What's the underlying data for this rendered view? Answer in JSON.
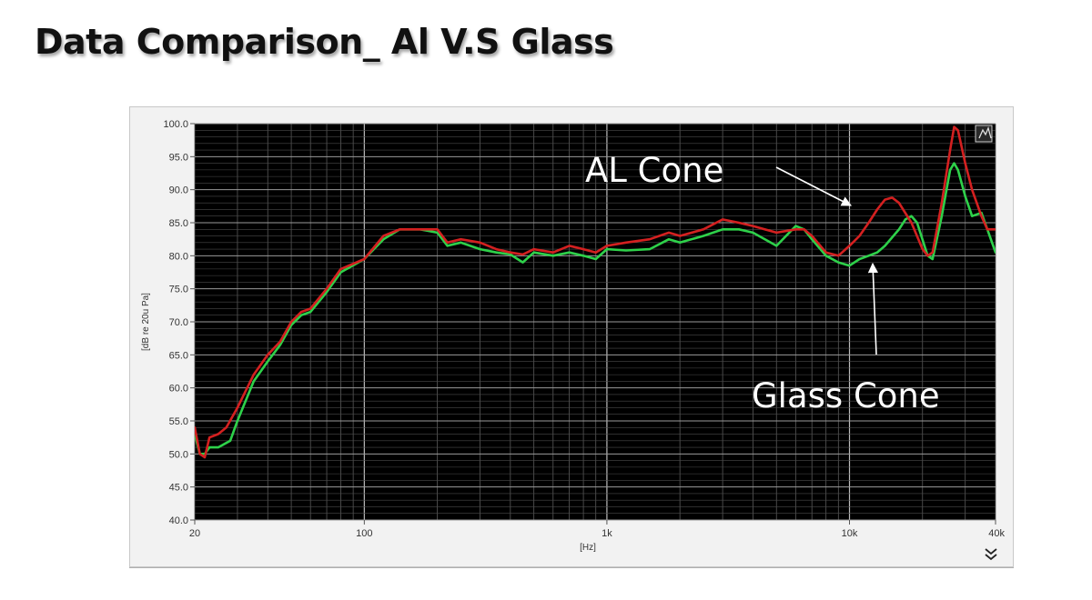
{
  "slide": {
    "title": "Data Comparison_ Al V.S Glass"
  },
  "colors": {
    "al": "#d42020",
    "glass": "#2ed14a",
    "plot_bg": "#000000",
    "panel_bg": "#f2f2f2"
  },
  "icons": {
    "corner": "graph-palette-icon",
    "expand": "double-chevron-down-icon"
  },
  "chart_data": {
    "type": "line",
    "title": "",
    "xlabel": "[Hz]",
    "ylabel": "[dB re 20u Pa]",
    "xscale": "log",
    "xlim": [
      20,
      40000
    ],
    "ylim": [
      40,
      100
    ],
    "grid": true,
    "x_ticks": [
      {
        "value": 20,
        "label": "20"
      },
      {
        "value": 100,
        "label": "100"
      },
      {
        "value": 1000,
        "label": "1k"
      },
      {
        "value": 10000,
        "label": "10k"
      },
      {
        "value": 40000,
        "label": "40k"
      }
    ],
    "y_ticks": [
      {
        "value": 100,
        "label": "100.0"
      },
      {
        "value": 95,
        "label": "95.0"
      },
      {
        "value": 90,
        "label": "90.0"
      },
      {
        "value": 85,
        "label": "85.0"
      },
      {
        "value": 80,
        "label": "80.0"
      },
      {
        "value": 75,
        "label": "75.0"
      },
      {
        "value": 70,
        "label": "70.0"
      },
      {
        "value": 65,
        "label": "65.0"
      },
      {
        "value": 60,
        "label": "60.0"
      },
      {
        "value": 55,
        "label": "55.0"
      },
      {
        "value": 50,
        "label": "50.0"
      },
      {
        "value": 45,
        "label": "45.0"
      },
      {
        "value": 40,
        "label": "40.0"
      }
    ],
    "series": [
      {
        "key": "al",
        "points": [
          [
            20,
            54
          ],
          [
            21,
            50
          ],
          [
            22,
            49.5
          ],
          [
            23,
            52.5
          ],
          [
            25,
            53
          ],
          [
            27,
            54
          ],
          [
            30,
            57
          ],
          [
            35,
            62
          ],
          [
            40,
            65
          ],
          [
            45,
            67
          ],
          [
            50,
            70
          ],
          [
            55,
            71.5
          ],
          [
            60,
            72
          ],
          [
            70,
            75
          ],
          [
            80,
            78
          ],
          [
            100,
            79.5
          ],
          [
            120,
            83
          ],
          [
            140,
            84
          ],
          [
            170,
            84
          ],
          [
            200,
            84
          ],
          [
            220,
            82
          ],
          [
            250,
            82.5
          ],
          [
            300,
            82
          ],
          [
            350,
            81
          ],
          [
            400,
            80.5
          ],
          [
            450,
            80.2
          ],
          [
            500,
            81
          ],
          [
            600,
            80.5
          ],
          [
            700,
            81.5
          ],
          [
            800,
            81
          ],
          [
            900,
            80.5
          ],
          [
            1000,
            81.5
          ],
          [
            1200,
            82
          ],
          [
            1500,
            82.5
          ],
          [
            1800,
            83.5
          ],
          [
            2000,
            83
          ],
          [
            2500,
            84
          ],
          [
            3000,
            85.5
          ],
          [
            3500,
            85
          ],
          [
            4000,
            84.5
          ],
          [
            5000,
            83.5
          ],
          [
            6000,
            84
          ],
          [
            6500,
            84
          ],
          [
            7000,
            83
          ],
          [
            8000,
            80.5
          ],
          [
            9000,
            80
          ],
          [
            10000,
            81.5
          ],
          [
            11000,
            83
          ],
          [
            12000,
            85
          ],
          [
            13000,
            87
          ],
          [
            14000,
            88.5
          ],
          [
            15000,
            88.8
          ],
          [
            16000,
            88
          ],
          [
            18000,
            85
          ],
          [
            20000,
            81
          ],
          [
            21000,
            80
          ],
          [
            22000,
            80.5
          ],
          [
            24000,
            88
          ],
          [
            26000,
            96
          ],
          [
            27000,
            99.5
          ],
          [
            28000,
            99
          ],
          [
            30000,
            94
          ],
          [
            32000,
            90
          ],
          [
            35000,
            86
          ],
          [
            37000,
            84
          ],
          [
            40000,
            84
          ]
        ]
      },
      {
        "key": "glass",
        "points": [
          [
            20,
            53
          ],
          [
            21,
            50
          ],
          [
            22,
            50
          ],
          [
            23,
            51
          ],
          [
            25,
            51
          ],
          [
            28,
            52
          ],
          [
            30,
            55
          ],
          [
            35,
            61
          ],
          [
            40,
            64
          ],
          [
            45,
            66.5
          ],
          [
            50,
            69.5
          ],
          [
            55,
            71
          ],
          [
            60,
            71.5
          ],
          [
            70,
            74.5
          ],
          [
            80,
            77.5
          ],
          [
            100,
            79.5
          ],
          [
            120,
            82.5
          ],
          [
            140,
            84
          ],
          [
            170,
            84
          ],
          [
            200,
            83.5
          ],
          [
            220,
            81.5
          ],
          [
            250,
            82
          ],
          [
            300,
            81
          ],
          [
            350,
            80.5
          ],
          [
            400,
            80.2
          ],
          [
            450,
            79
          ],
          [
            500,
            80.5
          ],
          [
            600,
            80
          ],
          [
            700,
            80.5
          ],
          [
            800,
            80
          ],
          [
            900,
            79.5
          ],
          [
            1000,
            81
          ],
          [
            1200,
            80.8
          ],
          [
            1500,
            81
          ],
          [
            1800,
            82.5
          ],
          [
            2000,
            82
          ],
          [
            2500,
            83
          ],
          [
            3000,
            84
          ],
          [
            3500,
            84
          ],
          [
            4000,
            83.5
          ],
          [
            5000,
            81.5
          ],
          [
            6000,
            84.5
          ],
          [
            6500,
            84
          ],
          [
            7000,
            82.5
          ],
          [
            8000,
            80
          ],
          [
            9000,
            79
          ],
          [
            10000,
            78.5
          ],
          [
            11000,
            79.5
          ],
          [
            12000,
            80
          ],
          [
            13000,
            80.5
          ],
          [
            14000,
            81.5
          ],
          [
            16000,
            84
          ],
          [
            17000,
            85.5
          ],
          [
            18000,
            86
          ],
          [
            19000,
            85
          ],
          [
            21000,
            80
          ],
          [
            22000,
            79.5
          ],
          [
            24000,
            86
          ],
          [
            26000,
            93
          ],
          [
            27000,
            94
          ],
          [
            28000,
            93
          ],
          [
            30000,
            89
          ],
          [
            32000,
            86
          ],
          [
            35000,
            86.5
          ],
          [
            37000,
            84
          ],
          [
            40000,
            80.5
          ]
        ]
      }
    ],
    "annotations": [
      {
        "text": "AL Cone",
        "series": "al"
      },
      {
        "text": "Glass Cone",
        "series": "glass"
      }
    ]
  }
}
